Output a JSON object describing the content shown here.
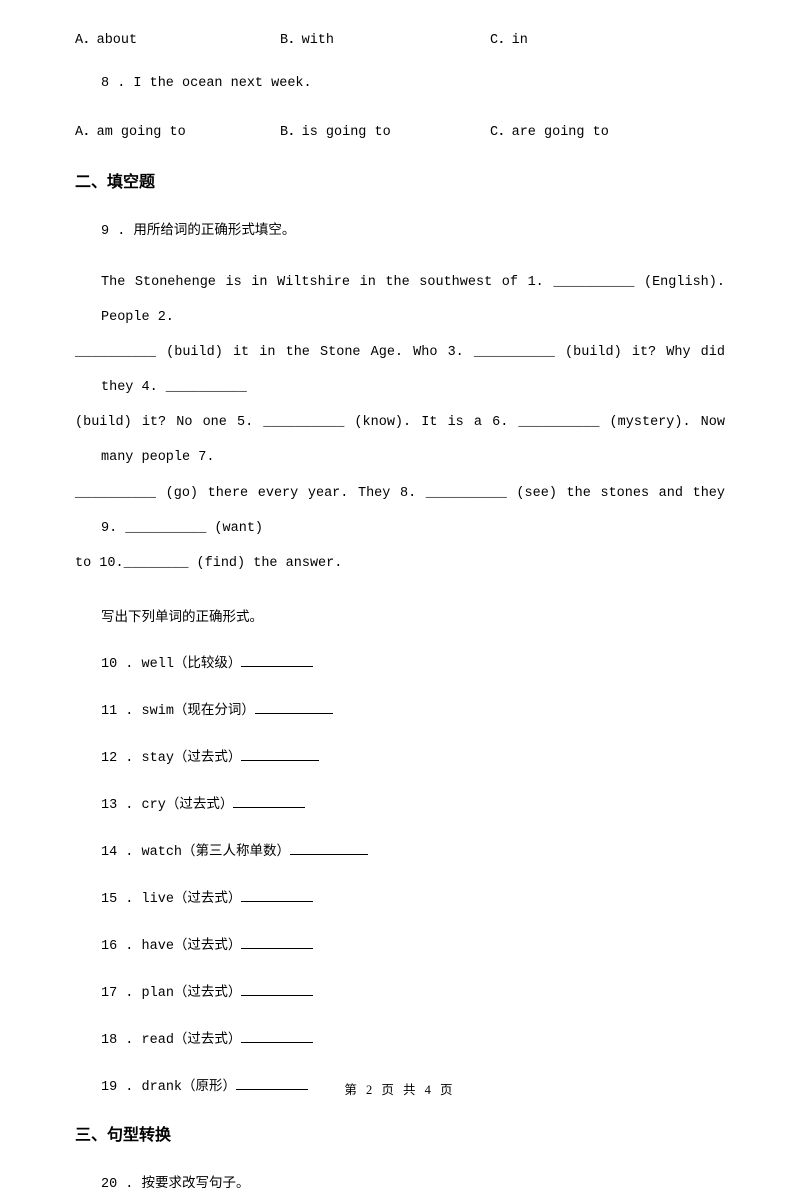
{
  "q7_options": {
    "a": "A．about",
    "b": "B．with",
    "c": "C．in"
  },
  "q8": {
    "text": "8 . I      the ocean next week.",
    "a": "A．am going to",
    "b": "B．is going to",
    "c": "C．are going to"
  },
  "section2_heading": "二、填空题",
  "q9_instruction_num": "9 . ",
  "q9_instruction_text": "用所给词的正确形式填空。",
  "passage_parts": {
    "p1": "The  Stonehenge  is  in  Wiltshire  in  the  southwest  of  1.  __________  (English).  People  2.",
    "p2": "__________  (build)  it  in  the  Stone  Age.  Who  3.  __________  (build)  it?  Why  did  they  4.  __________",
    "p3": "(build)  it?  No  one  5.  __________  (know).  It  is  a  6.  __________  (mystery).  Now  many  people  7.",
    "p4": "__________ (go) there every year. They 8. __________ (see) the stones and they 9. __________ (want)",
    "p5": "to 10.________ (find) the answer."
  },
  "group_heading": "写出下列单词的正确形式。",
  "words": [
    {
      "num": "10 . ",
      "en": "well",
      "cn": "（比较级）"
    },
    {
      "num": "11 . ",
      "en": "swim",
      "cn": "（现在分词）"
    },
    {
      "num": "12 . ",
      "en": "stay",
      "cn": "（过去式）"
    },
    {
      "num": "13 . ",
      "en": "cry",
      "cn": "（过去式）"
    },
    {
      "num": "14 . ",
      "en": "watch",
      "cn": "（第三人称单数）"
    },
    {
      "num": "15 . ",
      "en": "live",
      "cn": "（过去式）"
    },
    {
      "num": "16 . ",
      "en": "have",
      "cn": "（过去式）"
    },
    {
      "num": "17 . ",
      "en": "plan",
      "cn": "（过去式）"
    },
    {
      "num": "18 . ",
      "en": "read",
      "cn": "（过去式）"
    },
    {
      "num": "19 . ",
      "en": "drank",
      "cn": "（原形）"
    }
  ],
  "section3_heading": "三、句型转换",
  "q20_num": "20 . ",
  "q20_text": "按要求改写句子。",
  "footer": "第 2 页 共 4 页",
  "colors": {
    "text": "#000000",
    "background": "#ffffff"
  },
  "typography": {
    "body_fontsize": 13.5,
    "heading_fontsize": 16,
    "footer_fontsize": 12.5,
    "mono_family": "Courier New",
    "cn_family": "SimSun"
  }
}
